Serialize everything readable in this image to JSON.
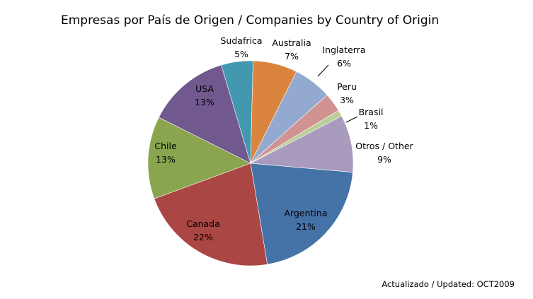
{
  "chart_data": {
    "type": "pie",
    "title": "Empresas por País de Origen / Companies by Country of Origin",
    "footer": "Actualizado / Updated: OCT2009",
    "slices": [
      {
        "name": "Argentina",
        "value": 21,
        "pct_label": "21%",
        "color": "#4572a7"
      },
      {
        "name": "Canada",
        "value": 22,
        "pct_label": "22%",
        "color": "#aa4643"
      },
      {
        "name": "Chile",
        "value": 13,
        "pct_label": "13%",
        "color": "#89a54e"
      },
      {
        "name": "USA",
        "value": 13,
        "pct_label": "13%",
        "color": "#71588f"
      },
      {
        "name": "Sudafrica",
        "value": 5,
        "pct_label": "5%",
        "color": "#4198af"
      },
      {
        "name": "Australia",
        "value": 7,
        "pct_label": "7%",
        "color": "#db843d"
      },
      {
        "name": "Inglaterra",
        "value": 6,
        "pct_label": "6%",
        "color": "#93a9cf"
      },
      {
        "name": "Peru",
        "value": 3,
        "pct_label": "3%",
        "color": "#d19392"
      },
      {
        "name": "Brasil",
        "value": 1,
        "pct_label": "1%",
        "color": "#b9cd96"
      },
      {
        "name": "Otros / Other",
        "value": 9,
        "pct_label": "9%",
        "color": "#a99bbd"
      }
    ]
  }
}
